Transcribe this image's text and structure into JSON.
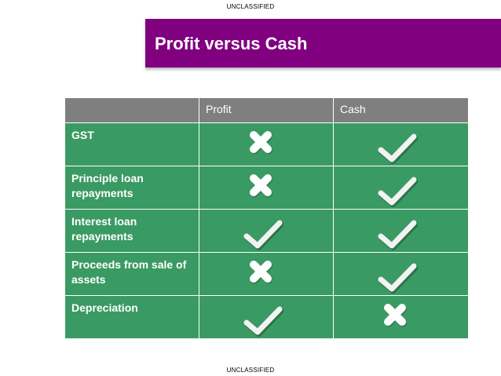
{
  "classification": {
    "top": "UNCLASSIFIED",
    "bottom": "UNCLASSIFIED"
  },
  "title": "Profit versus Cash",
  "table": {
    "headers": [
      "",
      "Profit",
      "Cash"
    ],
    "rows": [
      {
        "label": "GST",
        "profit": "cross",
        "cash": "check"
      },
      {
        "label": "Principle loan repayments",
        "profit": "cross",
        "cash": "check"
      },
      {
        "label": "Interest loan repayments",
        "profit": "check",
        "cash": "check"
      },
      {
        "label": "Proceeds from sale of assets",
        "profit": "cross",
        "cash": "check"
      },
      {
        "label": "Depreciation",
        "profit": "check",
        "cash": "cross"
      }
    ]
  },
  "colors": {
    "title_bar": "#800080",
    "header_row": "#7f7f7f",
    "body_row": "#3a9a63"
  }
}
